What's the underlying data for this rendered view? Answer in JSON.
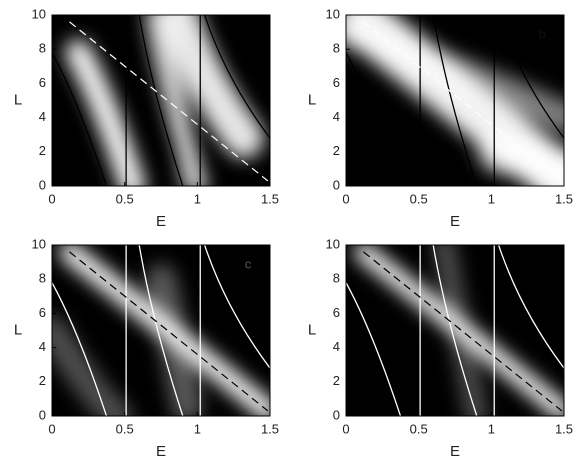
{
  "chart_data": [
    {
      "type": "heatmap",
      "xlabel": "E",
      "ylabel": "L",
      "xlim": [
        0,
        1.5
      ],
      "ylim": [
        0,
        10
      ],
      "xticks": [
        0,
        0.5,
        1,
        1.5
      ],
      "yticks": [
        0,
        2,
        4,
        6,
        8,
        10
      ],
      "style": "dark-lines"
    },
    {
      "type": "heatmap",
      "xlabel": "E",
      "ylabel": "L",
      "panel_label": "b",
      "xlim": [
        0,
        1.5
      ],
      "ylim": [
        0,
        10
      ],
      "xticks": [
        0,
        0.5,
        1,
        1.5
      ],
      "yticks": [
        0,
        2,
        4,
        6,
        8,
        10
      ],
      "style": "dark-lines"
    },
    {
      "type": "heatmap",
      "xlabel": "E",
      "ylabel": "L",
      "panel_label": "c",
      "xlim": [
        0,
        1.5
      ],
      "ylim": [
        0,
        10
      ],
      "xticks": [
        0,
        0.5,
        1,
        1.5
      ],
      "yticks": [
        0,
        2,
        4,
        6,
        8,
        10
      ],
      "style": "light-lines"
    },
    {
      "type": "heatmap",
      "xlabel": "E",
      "ylabel": "L",
      "xlim": [
        0,
        1.5
      ],
      "ylim": [
        0,
        10
      ],
      "xticks": [
        0,
        0.5,
        1,
        1.5
      ],
      "yticks": [
        0,
        2,
        4,
        6,
        8,
        10
      ],
      "style": "light-lines"
    }
  ]
}
